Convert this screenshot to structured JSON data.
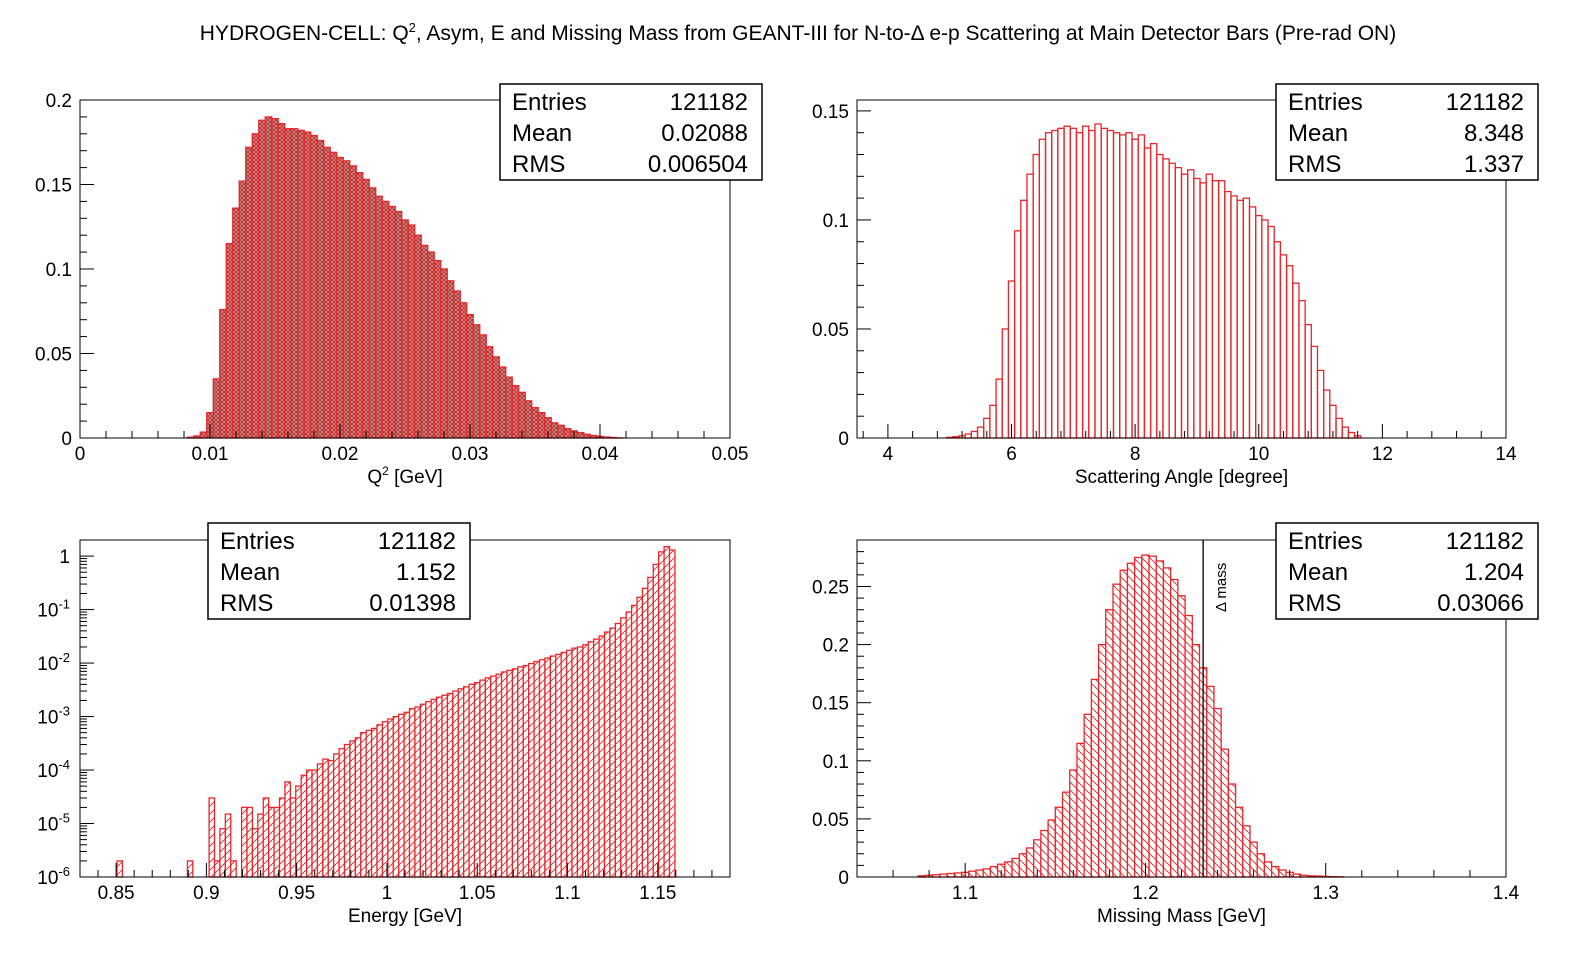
{
  "figure_title": {
    "pre": "HYDROGEN-CELL: Q",
    "sup": "2",
    "post": ", Asym, E and Missing Mass from GEANT-III for N-to-Δ e-p Scattering at Main Detector Bars (Pre-rad ON)"
  },
  "stat_labels": {
    "entries": "Entries",
    "mean": "Mean",
    "rms": "RMS"
  },
  "chart_data": [
    {
      "id": "q2",
      "type": "bar",
      "xlabel": "Q^2 [GeV]",
      "xlabel_parts": {
        "pre": "Q",
        "sup": "2",
        "post": " [GeV]"
      },
      "xlim": [
        0,
        0.05
      ],
      "ylim": [
        0,
        0.2
      ],
      "xticks": [
        "0",
        "0.01",
        "0.02",
        "0.03",
        "0.04",
        "0.05"
      ],
      "yticks": [
        "0",
        "0.05",
        "0.1",
        "0.15",
        "0.2"
      ],
      "stats": {
        "entries": "121182",
        "mean": "0.02088",
        "rms": "0.006504"
      },
      "bin_width": 0.0005,
      "x": [
        0.0085,
        0.009,
        0.0095,
        0.01,
        0.0105,
        0.011,
        0.0115,
        0.012,
        0.0125,
        0.013,
        0.0135,
        0.014,
        0.0145,
        0.015,
        0.0155,
        0.016,
        0.0165,
        0.017,
        0.0175,
        0.018,
        0.0185,
        0.019,
        0.0195,
        0.02,
        0.0205,
        0.021,
        0.0215,
        0.022,
        0.0225,
        0.023,
        0.0235,
        0.024,
        0.0245,
        0.025,
        0.0255,
        0.026,
        0.0265,
        0.027,
        0.0275,
        0.028,
        0.0285,
        0.029,
        0.0295,
        0.03,
        0.0305,
        0.031,
        0.0315,
        0.032,
        0.0325,
        0.033,
        0.0335,
        0.034,
        0.0345,
        0.035,
        0.0355,
        0.036,
        0.0365,
        0.037,
        0.0375,
        0.038,
        0.0385,
        0.039,
        0.0395,
        0.04,
        0.0405,
        0.041,
        0.0415
      ],
      "values": [
        0.0005,
        0.0012,
        0.0035,
        0.015,
        0.035,
        0.076,
        0.115,
        0.136,
        0.152,
        0.172,
        0.18,
        0.188,
        0.19,
        0.189,
        0.186,
        0.183,
        0.183,
        0.182,
        0.181,
        0.179,
        0.176,
        0.172,
        0.169,
        0.166,
        0.164,
        0.161,
        0.157,
        0.153,
        0.148,
        0.143,
        0.14,
        0.137,
        0.134,
        0.129,
        0.126,
        0.12,
        0.114,
        0.11,
        0.105,
        0.1,
        0.093,
        0.087,
        0.08,
        0.073,
        0.067,
        0.061,
        0.054,
        0.048,
        0.042,
        0.036,
        0.031,
        0.027,
        0.022,
        0.018,
        0.015,
        0.012,
        0.009,
        0.0075,
        0.0055,
        0.0042,
        0.0032,
        0.0022,
        0.0015,
        0.001,
        0.0006,
        0.0003,
        0.0001
      ],
      "style": "filled"
    },
    {
      "id": "angle",
      "type": "bar",
      "xlabel": "Scattering Angle [degree]",
      "xlim": [
        3.5,
        14
      ],
      "ylim": [
        0,
        0.155
      ],
      "xticks": [
        "4",
        "6",
        "8",
        "10",
        "12",
        "14"
      ],
      "yticks": [
        "0",
        "0.05",
        "0.1",
        "0.15"
      ],
      "stats": {
        "entries": "121182",
        "mean": "8.348",
        "rms": "1.337"
      },
      "bin_width": 0.1,
      "x": [
        5.0,
        5.1,
        5.2,
        5.3,
        5.4,
        5.5,
        5.6,
        5.7,
        5.8,
        5.9,
        6.0,
        6.1,
        6.2,
        6.3,
        6.4,
        6.5,
        6.6,
        6.7,
        6.8,
        6.9,
        7.0,
        7.1,
        7.2,
        7.3,
        7.4,
        7.5,
        7.6,
        7.7,
        7.8,
        7.9,
        8.0,
        8.1,
        8.2,
        8.3,
        8.4,
        8.5,
        8.6,
        8.7,
        8.8,
        8.9,
        9.0,
        9.1,
        9.2,
        9.3,
        9.4,
        9.5,
        9.6,
        9.7,
        9.8,
        9.9,
        10.0,
        10.1,
        10.2,
        10.3,
        10.4,
        10.5,
        10.6,
        10.7,
        10.8,
        10.9,
        11.0,
        11.1,
        11.2,
        11.3,
        11.4,
        11.5,
        11.6
      ],
      "values": [
        0.0003,
        0.0006,
        0.001,
        0.0018,
        0.003,
        0.005,
        0.009,
        0.015,
        0.027,
        0.05,
        0.072,
        0.095,
        0.109,
        0.121,
        0.13,
        0.137,
        0.14,
        0.141,
        0.142,
        0.143,
        0.142,
        0.14,
        0.143,
        0.141,
        0.144,
        0.142,
        0.141,
        0.14,
        0.139,
        0.14,
        0.137,
        0.139,
        0.133,
        0.135,
        0.13,
        0.128,
        0.126,
        0.124,
        0.121,
        0.123,
        0.119,
        0.117,
        0.121,
        0.118,
        0.118,
        0.113,
        0.111,
        0.109,
        0.11,
        0.106,
        0.102,
        0.1,
        0.097,
        0.09,
        0.084,
        0.079,
        0.071,
        0.063,
        0.052,
        0.042,
        0.031,
        0.022,
        0.015,
        0.009,
        0.005,
        0.0025,
        0.001
      ],
      "style": "bars"
    },
    {
      "id": "energy",
      "type": "bar",
      "xlabel": "Energy [GeV]",
      "xlim": [
        0.83,
        1.19
      ],
      "ylog": true,
      "ylim": [
        1e-06,
        2
      ],
      "xticks": [
        "0.85",
        "0.9",
        "0.95",
        "1",
        "1.05",
        "1.1",
        "1.15"
      ],
      "yticks_log": [
        {
          "base": "10",
          "exp": "-6"
        },
        {
          "base": "10",
          "exp": "-5"
        },
        {
          "base": "10",
          "exp": "-4"
        },
        {
          "base": "10",
          "exp": "-3"
        },
        {
          "base": "10",
          "exp": "-2"
        },
        {
          "base": "10",
          "exp": "-1"
        },
        {
          "base": "1",
          "exp": ""
        }
      ],
      "stats": {
        "entries": "121182",
        "mean": "1.152",
        "rms": "0.01398"
      },
      "bin_width": 0.003,
      "x": [
        0.852,
        0.891,
        0.903,
        0.906,
        0.909,
        0.912,
        0.915,
        0.921,
        0.924,
        0.927,
        0.93,
        0.933,
        0.936,
        0.939,
        0.942,
        0.945,
        0.948,
        0.951,
        0.954,
        0.957,
        0.96,
        0.963,
        0.966,
        0.969,
        0.972,
        0.975,
        0.978,
        0.981,
        0.984,
        0.987,
        0.99,
        0.993,
        0.996,
        0.999,
        1.002,
        1.005,
        1.008,
        1.011,
        1.014,
        1.017,
        1.02,
        1.023,
        1.026,
        1.029,
        1.032,
        1.035,
        1.038,
        1.041,
        1.044,
        1.047,
        1.05,
        1.053,
        1.056,
        1.059,
        1.062,
        1.065,
        1.068,
        1.071,
        1.074,
        1.077,
        1.08,
        1.083,
        1.086,
        1.089,
        1.092,
        1.095,
        1.098,
        1.101,
        1.104,
        1.107,
        1.11,
        1.113,
        1.116,
        1.119,
        1.122,
        1.125,
        1.128,
        1.131,
        1.134,
        1.137,
        1.14,
        1.143,
        1.146,
        1.149,
        1.152,
        1.155,
        1.158
      ],
      "values": [
        2e-06,
        2e-06,
        3e-05,
        2e-06,
        8e-06,
        1.5e-05,
        2e-06,
        2e-05,
        2e-05,
        8e-06,
        1.5e-05,
        3e-05,
        2e-05,
        2e-05,
        3e-05,
        6e-05,
        3e-05,
        5e-05,
        8e-05,
        0.0001,
        0.0001,
        0.00013,
        0.00016,
        0.00015,
        0.0002,
        0.00025,
        0.0003,
        0.00035,
        0.0004,
        0.0005,
        0.00055,
        0.0006,
        0.0007,
        0.0008,
        0.0009,
        0.001,
        0.0011,
        0.0012,
        0.0014,
        0.0015,
        0.0017,
        0.0019,
        0.0021,
        0.0023,
        0.0025,
        0.0027,
        0.003,
        0.0033,
        0.0036,
        0.004,
        0.0043,
        0.0048,
        0.0053,
        0.0057,
        0.0062,
        0.0068,
        0.0073,
        0.0078,
        0.0085,
        0.009,
        0.0098,
        0.0107,
        0.0115,
        0.0124,
        0.0135,
        0.0145,
        0.0158,
        0.0173,
        0.019,
        0.02,
        0.022,
        0.025,
        0.028,
        0.032,
        0.038,
        0.045,
        0.055,
        0.07,
        0.09,
        0.12,
        0.17,
        0.25,
        0.4,
        0.7,
        1.2,
        1.5,
        1.3
      ],
      "style": "hatched"
    },
    {
      "id": "mm",
      "type": "bar",
      "xlabel": "Missing Mass [GeV]",
      "xlim": [
        1.04,
        1.4
      ],
      "ylim": [
        0,
        0.29
      ],
      "xticks": [
        "1.1",
        "1.2",
        "1.3",
        "1.4"
      ],
      "yticks": [
        "0",
        "0.05",
        "0.1",
        "0.15",
        "0.2",
        "0.25"
      ],
      "stats": {
        "entries": "121182",
        "mean": "1.204",
        "rms": "0.03066"
      },
      "marker": {
        "x": 1.232,
        "label": "Δ mass"
      },
      "bin_width": 0.004,
      "x": [
        1.076,
        1.08,
        1.084,
        1.088,
        1.092,
        1.096,
        1.1,
        1.104,
        1.108,
        1.112,
        1.116,
        1.12,
        1.124,
        1.128,
        1.132,
        1.136,
        1.14,
        1.144,
        1.148,
        1.152,
        1.156,
        1.16,
        1.164,
        1.168,
        1.172,
        1.176,
        1.18,
        1.184,
        1.188,
        1.192,
        1.196,
        1.2,
        1.204,
        1.208,
        1.212,
        1.216,
        1.22,
        1.224,
        1.228,
        1.232,
        1.236,
        1.24,
        1.244,
        1.248,
        1.252,
        1.256,
        1.26,
        1.264,
        1.268,
        1.272,
        1.276,
        1.28,
        1.284,
        1.288,
        1.292,
        1.296,
        1.3,
        1.304,
        1.308
      ],
      "values": [
        0.001,
        0.0015,
        0.002,
        0.0025,
        0.003,
        0.0035,
        0.004,
        0.005,
        0.006,
        0.007,
        0.009,
        0.011,
        0.013,
        0.016,
        0.02,
        0.025,
        0.032,
        0.04,
        0.049,
        0.06,
        0.073,
        0.092,
        0.115,
        0.14,
        0.17,
        0.2,
        0.23,
        0.252,
        0.264,
        0.27,
        0.275,
        0.277,
        0.276,
        0.272,
        0.266,
        0.256,
        0.242,
        0.225,
        0.2,
        0.18,
        0.164,
        0.145,
        0.11,
        0.08,
        0.06,
        0.044,
        0.03,
        0.02,
        0.013,
        0.009,
        0.006,
        0.004,
        0.0025,
        0.0015,
        0.001,
        0.0008,
        0.0005,
        0.0003,
        0.0002
      ],
      "style": "hatched"
    }
  ]
}
